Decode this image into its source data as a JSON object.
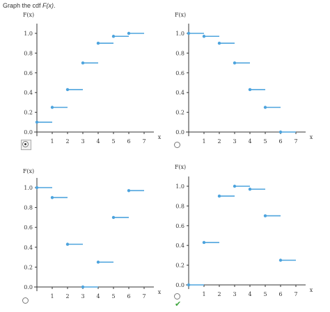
{
  "question": {
    "prompt_prefix": "Graph the cdf ",
    "prompt_fx": "F(x)",
    "prompt_suffix": "."
  },
  "colors": {
    "step": "#4ca3dd",
    "axis": "#333333",
    "check": "#3aa33a"
  },
  "options": [
    {
      "id": "a",
      "selected": true,
      "correct": false
    },
    {
      "id": "b",
      "selected": false,
      "correct": false
    },
    {
      "id": "c",
      "selected": false,
      "correct": false
    },
    {
      "id": "d",
      "selected": false,
      "correct": true,
      "mark_icon": "checkmark-icon"
    }
  ],
  "chart_data": [
    {
      "type": "line",
      "ylabel": "F(x)",
      "xlabel": "x",
      "xlim": [
        0,
        7
      ],
      "ylim": [
        0,
        1
      ],
      "xticks": [
        1,
        2,
        3,
        4,
        5,
        6,
        7
      ],
      "yticks": [
        "0.0",
        "0.2",
        "0.4",
        "0.6",
        "0.8",
        "1.0"
      ],
      "steps": [
        {
          "x": 0,
          "y": 0.1
        },
        {
          "x": 1,
          "y": 0.25
        },
        {
          "x": 2,
          "y": 0.43
        },
        {
          "x": 3,
          "y": 0.7
        },
        {
          "x": 4,
          "y": 0.9
        },
        {
          "x": 5,
          "y": 0.97
        },
        {
          "x": 6,
          "y": 1.0
        }
      ]
    },
    {
      "type": "line",
      "ylabel": "F(x)",
      "xlabel": "x",
      "xlim": [
        0,
        7
      ],
      "ylim": [
        0,
        1
      ],
      "xticks": [
        1,
        2,
        3,
        4,
        5,
        6,
        7
      ],
      "yticks": [
        "0.0",
        "0.2",
        "0.4",
        "0.6",
        "0.8",
        "1.0"
      ],
      "steps": [
        {
          "x": 0,
          "y": 1.0
        },
        {
          "x": 1,
          "y": 0.97
        },
        {
          "x": 2,
          "y": 0.9
        },
        {
          "x": 3,
          "y": 0.7
        },
        {
          "x": 4,
          "y": 0.43
        },
        {
          "x": 5,
          "y": 0.25
        },
        {
          "x": 6,
          "y": 0.0
        }
      ]
    },
    {
      "type": "line",
      "ylabel": "F(x)",
      "xlabel": "x",
      "xlim": [
        0,
        7
      ],
      "ylim": [
        0,
        1
      ],
      "xticks": [
        1,
        2,
        3,
        4,
        5,
        6,
        7
      ],
      "yticks": [
        "0.0",
        "0.2",
        "0.4",
        "0.6",
        "0.8",
        "1.0"
      ],
      "steps": [
        {
          "x": 0,
          "y": 1.0
        },
        {
          "x": 1,
          "y": 0.9
        },
        {
          "x": 2,
          "y": 0.43
        },
        {
          "x": 3,
          "y": 0.0
        },
        {
          "x": 4,
          "y": 0.25
        },
        {
          "x": 5,
          "y": 0.7
        },
        {
          "x": 6,
          "y": 0.97
        }
      ]
    },
    {
      "type": "line",
      "ylabel": "F(x)",
      "xlabel": "x",
      "xlim": [
        0,
        7
      ],
      "ylim": [
        0,
        1
      ],
      "xticks": [
        1,
        2,
        3,
        4,
        5,
        6,
        7
      ],
      "yticks": [
        "0.0",
        "0.2",
        "0.4",
        "0.6",
        "0.8",
        "1.0"
      ],
      "steps": [
        {
          "x": 0,
          "y": 0.0
        },
        {
          "x": 1,
          "y": 0.43
        },
        {
          "x": 2,
          "y": 0.9
        },
        {
          "x": 3,
          "y": 1.0
        },
        {
          "x": 4,
          "y": 0.97
        },
        {
          "x": 5,
          "y": 0.7
        },
        {
          "x": 6,
          "y": 0.25
        }
      ]
    }
  ]
}
